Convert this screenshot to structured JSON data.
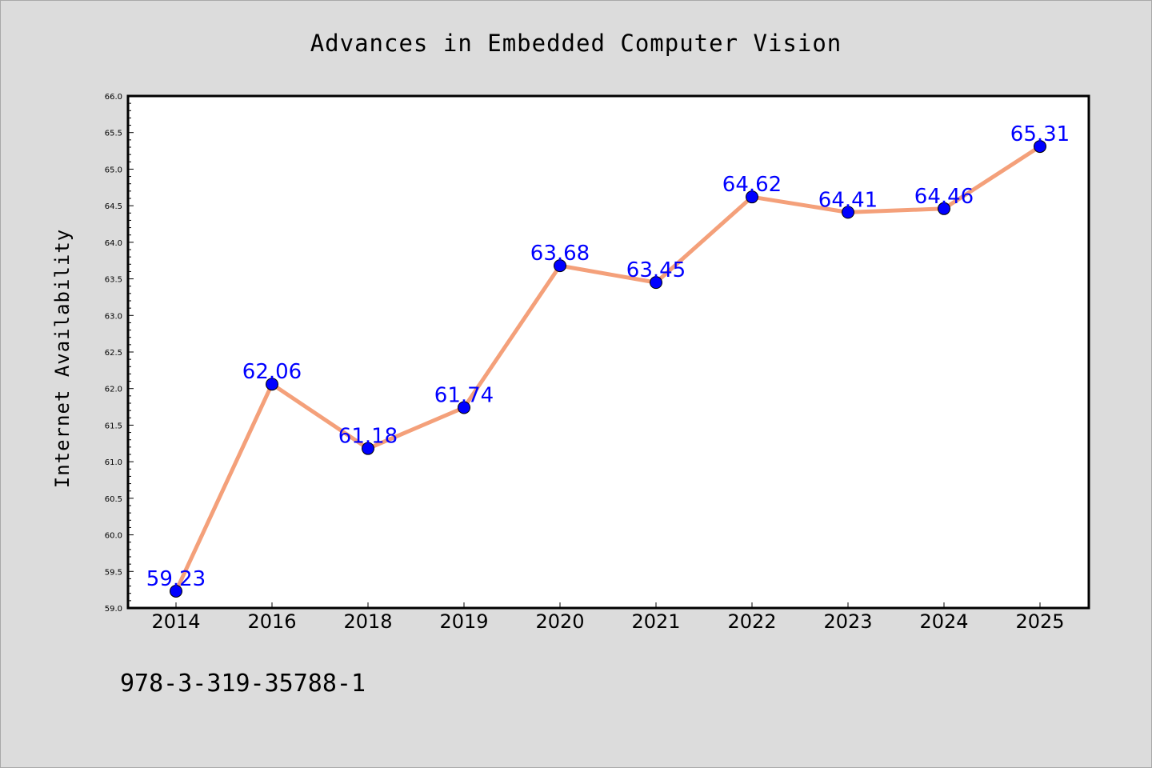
{
  "chart_data": {
    "type": "line",
    "title": "Advances in Embedded Computer Vision",
    "ylabel": "Internet Availability",
    "xlabel": "",
    "categories": [
      "2014",
      "2016",
      "2018",
      "2019",
      "2020",
      "2021",
      "2022",
      "2023",
      "2024",
      "2025"
    ],
    "series": [
      {
        "values": [
          59.23,
          62.06,
          61.18,
          61.74,
          63.68,
          63.45,
          64.62,
          64.41,
          64.46,
          65.31
        ],
        "labels": [
          "59.23",
          "62.06",
          "61.18",
          "61.74",
          "63.68",
          "63.45",
          "64.62",
          "64.41",
          "64.46",
          "65.31"
        ]
      }
    ],
    "ylim": [
      59.0,
      66.0
    ],
    "y_ticks": [
      "59.0",
      "59.5",
      "60.0",
      "60.5",
      "61.0",
      "61.5",
      "62.0",
      "62.5",
      "63.0",
      "63.5",
      "64.0",
      "64.5",
      "65.0",
      "65.5",
      "66.0"
    ],
    "grid": false,
    "line_color": "#f4a07a",
    "marker_color": "#0000ff",
    "label_color": "#0000ff",
    "plot_background": "#ffffff",
    "figure_background": "#dcdcdc"
  },
  "footer": {
    "isbn": "978-3-319-35788-1"
  }
}
